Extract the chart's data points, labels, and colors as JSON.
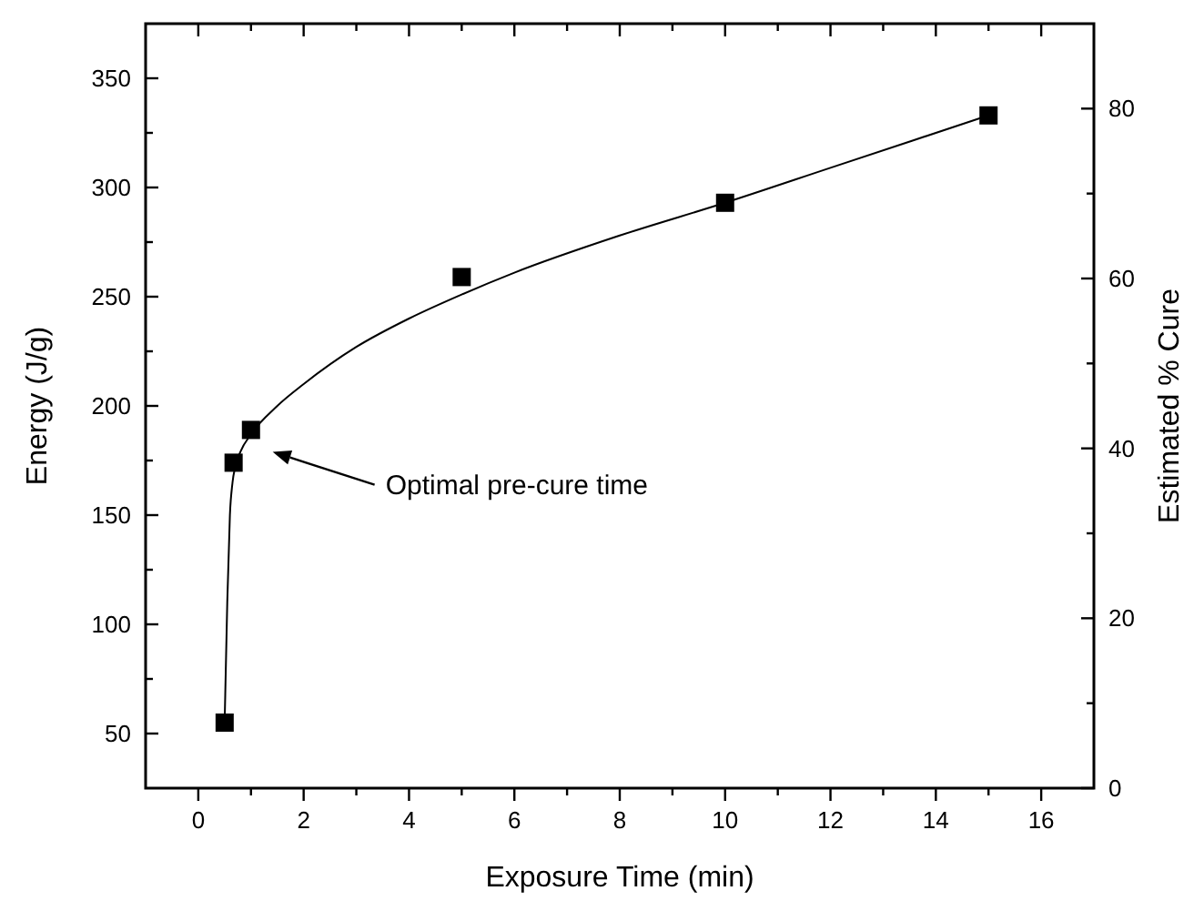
{
  "chart_data": {
    "type": "scatter",
    "xlabel": "Exposure Time (min)",
    "ylabel": "Energy (J/g)",
    "y2label": "Estimated % Cure",
    "xlim": [
      -1,
      17
    ],
    "xticks": [
      0,
      {
        "value": 1,
        "label": null
      },
      2,
      {
        "value": 3,
        "label": null
      },
      4,
      {
        "value": 5,
        "label": null
      },
      6,
      {
        "value": 7,
        "label": null
      },
      8,
      {
        "value": 9,
        "label": null
      },
      10,
      {
        "value": 11,
        "label": null
      },
      12,
      {
        "value": 13,
        "label": null
      },
      14,
      {
        "value": 15,
        "label": null
      },
      16
    ],
    "ylim": [
      25,
      375
    ],
    "yticks": [
      50,
      {
        "value": 75,
        "label": null
      },
      100,
      {
        "value": 125,
        "label": null
      },
      150,
      {
        "value": 175,
        "label": null
      },
      200,
      {
        "value": 225,
        "label": null
      },
      250,
      {
        "value": 275,
        "label": null
      },
      300,
      {
        "value": 325,
        "label": null
      },
      350
    ],
    "y2lim": [
      0,
      90
    ],
    "y2ticks": [
      0,
      {
        "value": 10,
        "label": null
      },
      20,
      {
        "value": 30,
        "label": null
      },
      40,
      {
        "value": 50,
        "label": null
      },
      60,
      {
        "value": 70,
        "label": null
      },
      80
    ],
    "grid": false,
    "series": [
      {
        "marker": "square",
        "color": "#000000",
        "x": [
          0.5,
          0.67,
          1,
          5,
          10,
          15
        ],
        "values": [
          55,
          174,
          189,
          259,
          293,
          333
        ]
      },
      {
        "type": "line",
        "marker": "none",
        "line_style": "solid",
        "color": "#000000",
        "x": [
          0.5,
          0.55,
          0.6,
          0.65,
          0.7,
          0.8,
          1,
          1.5,
          2,
          3,
          4,
          5,
          6,
          8,
          10,
          12,
          15
        ],
        "values": [
          55,
          110,
          150,
          165,
          172,
          179,
          187,
          200,
          210,
          227,
          240,
          251,
          261,
          278,
          293,
          309,
          333
        ]
      }
    ],
    "annotations": [
      "Optimal pre-cure time"
    ]
  }
}
